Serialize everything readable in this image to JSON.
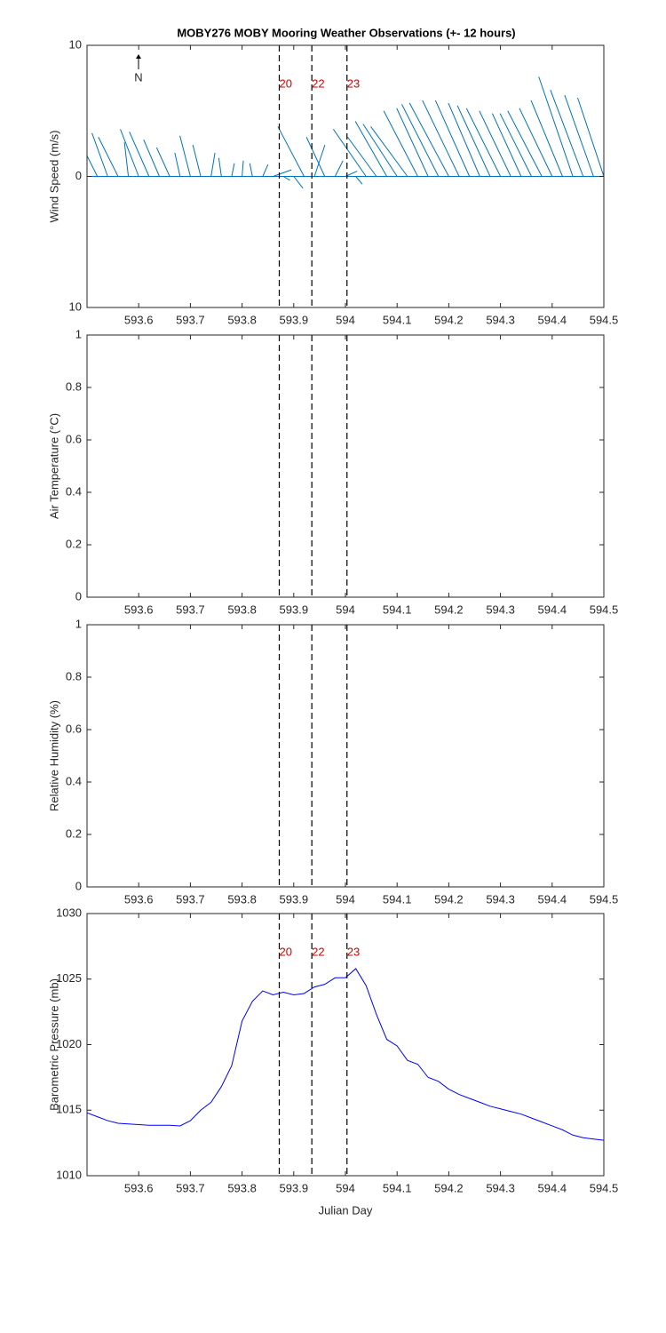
{
  "chart_data": [
    {
      "type": "stick",
      "title": "MOBY276 MOBY Mooring Weather Observations (+- 12 hours)",
      "ylabel": "Wind Speed (m/s)",
      "north_label": "N",
      "color": "#0072bd",
      "x": [
        593.5,
        593.52,
        593.54,
        593.56,
        593.58,
        593.6,
        593.62,
        593.64,
        593.66,
        593.68,
        593.7,
        593.72,
        593.74,
        593.76,
        593.78,
        593.8,
        593.82,
        593.84,
        593.86,
        593.88,
        593.9,
        593.92,
        593.94,
        593.96,
        593.98,
        594.0,
        594.02,
        594.04,
        594.06,
        594.08,
        594.1,
        594.12,
        594.14,
        594.16,
        594.18,
        594.2,
        594.22,
        594.24,
        594.26,
        594.28,
        594.3,
        594.32,
        594.34,
        594.36,
        594.38,
        594.4,
        594.42,
        594.44,
        594.46,
        594.48,
        594.5
      ],
      "u": [
        -1.8,
        -1.6,
        -1.2,
        -1.5,
        -0.3,
        -1.4,
        -1.5,
        -1.2,
        -1.0,
        -0.4,
        -0.8,
        -0.6,
        0.3,
        -0.2,
        0.2,
        0.1,
        -0.2,
        0.4,
        1.4,
        0.5,
        0.7,
        -2.0,
        0.8,
        -1.4,
        0.6,
        0.9,
        0.5,
        -2.5,
        -2.2,
        -2.4,
        -2.6,
        -2.8,
        -2.6,
        -2.4,
        -2.8,
        -3.0,
        -2.8,
        -2.6,
        -2.4,
        -2.5,
        -2.6,
        -2.4,
        -2.2,
        -2.4,
        -2.6,
        -2.5,
        -2.4,
        -2.6,
        -2.5,
        -2.2,
        -2.0
      ],
      "v": [
        3.8,
        3.2,
        3.3,
        3.0,
        2.6,
        3.6,
        3.4,
        2.8,
        2.2,
        1.8,
        3.1,
        2.4,
        1.8,
        1.4,
        1.0,
        1.2,
        1.0,
        0.9,
        0.5,
        -0.3,
        -0.9,
        3.8,
        2.4,
        3.0,
        1.2,
        0.4,
        -0.6,
        3.6,
        3.0,
        4.2,
        4.0,
        3.8,
        5.0,
        5.2,
        5.5,
        5.6,
        5.8,
        5.8,
        5.6,
        5.4,
        5.2,
        5.0,
        4.8,
        4.8,
        5.0,
        5.2,
        5.8,
        7.6,
        6.6,
        6.2,
        6.0
      ],
      "xlim": [
        593.5,
        594.5
      ],
      "xticks": [
        593.6,
        593.7,
        593.8,
        593.9,
        594,
        594.1,
        594.2,
        594.3,
        594.4,
        594.5
      ],
      "ylim": [
        -10,
        10
      ],
      "yticks": [
        {
          "value": -10,
          "label": "10"
        },
        0,
        10
      ],
      "event_lines": [
        593.872,
        593.935,
        594.003
      ],
      "event_labels": [
        "20",
        "22",
        "23"
      ]
    },
    {
      "type": "line",
      "ylabel": "Air Temperature (°C)",
      "xlim": [
        593.5,
        594.5
      ],
      "xticks": [
        593.6,
        593.7,
        593.8,
        593.9,
        594,
        594.1,
        594.2,
        594.3,
        594.4,
        594.5
      ],
      "ylim": [
        0,
        1
      ],
      "yticks": [
        0,
        0.2,
        0.4,
        0.6,
        0.8,
        1
      ],
      "event_lines": [
        593.872,
        593.935,
        594.003
      ]
    },
    {
      "type": "line",
      "ylabel": "Relative Humidity (%)",
      "xlim": [
        593.5,
        594.5
      ],
      "xticks": [
        593.6,
        593.7,
        593.8,
        593.9,
        594,
        594.1,
        594.2,
        594.3,
        594.4,
        594.5
      ],
      "ylim": [
        0,
        1
      ],
      "yticks": [
        0,
        0.2,
        0.4,
        0.6,
        0.8,
        1
      ],
      "event_lines": [
        593.872,
        593.935,
        594.003
      ]
    },
    {
      "type": "line",
      "ylabel": "Barometric Pressure (mb)",
      "xlabel": "Julian Day",
      "x": [
        593.5,
        593.52,
        593.54,
        593.56,
        593.58,
        593.6,
        593.62,
        593.64,
        593.66,
        593.68,
        593.7,
        593.72,
        593.74,
        593.76,
        593.78,
        593.8,
        593.82,
        593.84,
        593.86,
        593.88,
        593.9,
        593.92,
        593.94,
        593.96,
        593.98,
        594.0,
        594.02,
        594.04,
        594.06,
        594.08,
        594.1,
        594.12,
        594.14,
        594.16,
        594.18,
        594.2,
        594.22,
        594.24,
        594.26,
        594.28,
        594.3,
        594.32,
        594.34,
        594.36,
        594.38,
        594.4,
        594.42,
        594.44,
        594.46,
        594.48,
        594.5
      ],
      "series": [
        {
          "color": "#0000ff",
          "values": [
            1014.8,
            1014.5,
            1014.2,
            1014.0,
            1013.95,
            1013.9,
            1013.85,
            1013.85,
            1013.85,
            1013.8,
            1014.2,
            1015.0,
            1015.6,
            1016.8,
            1018.4,
            1021.8,
            1023.3,
            1024.1,
            1023.8,
            1024.0,
            1023.8,
            1023.9,
            1024.4,
            1024.6,
            1025.1,
            1025.1,
            1025.8,
            1024.5,
            1022.3,
            1020.4,
            1019.9,
            1018.8,
            1018.5,
            1017.5,
            1017.2,
            1016.6,
            1016.2,
            1015.9,
            1015.6,
            1015.3,
            1015.1,
            1014.9,
            1014.7,
            1014.4,
            1014.1,
            1013.8,
            1013.5,
            1013.1,
            1012.9,
            1012.8,
            1012.7
          ]
        }
      ],
      "xlim": [
        593.5,
        594.5
      ],
      "xticks": [
        593.6,
        593.7,
        593.8,
        593.9,
        594,
        594.1,
        594.2,
        594.3,
        594.4,
        594.5
      ],
      "ylim": [
        1010,
        1030
      ],
      "yticks": [
        1010,
        1015,
        1020,
        1025,
        1030
      ],
      "event_lines": [
        593.872,
        593.935,
        594.003
      ],
      "event_labels": [
        "20",
        "22",
        "23"
      ]
    }
  ]
}
